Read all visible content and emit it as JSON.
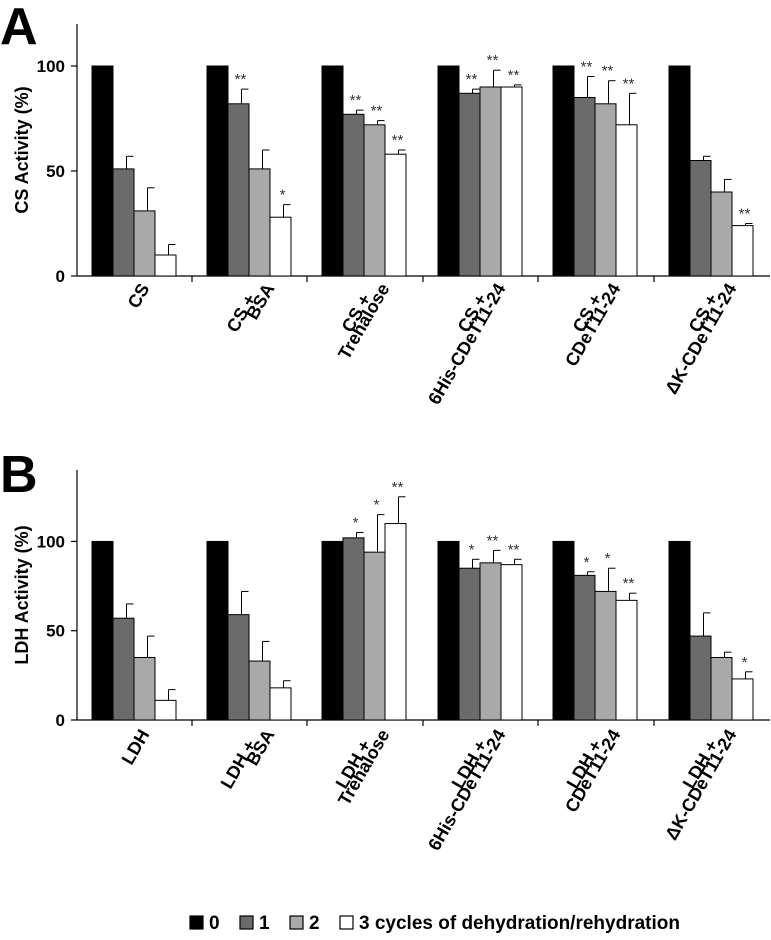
{
  "legend": {
    "entries": [
      {
        "label": "0",
        "color": "#000000"
      },
      {
        "label": "1",
        "color": "#6b6b6b"
      },
      {
        "label": "2",
        "color": "#a9a9a9"
      },
      {
        "label": "3 cycles of dehydration/rehydration",
        "color": "#ffffff"
      }
    ]
  },
  "chart_data": [
    {
      "type": "bar",
      "panel": "A",
      "title": "",
      "xlabel": "",
      "ylabel": "CS Activity (%)",
      "ylim": [
        0,
        120
      ],
      "yticks": [
        0,
        50,
        100
      ],
      "categories": [
        [
          "CS"
        ],
        [
          "CS +",
          "BSA"
        ],
        [
          "CS +",
          "Trehalose"
        ],
        [
          "CS +",
          "6His-CDeT11-24"
        ],
        [
          "CS +",
          "CDeT11-24"
        ],
        [
          "CS +",
          "ΔK-CDeT11-24"
        ]
      ],
      "series": [
        {
          "name": "0",
          "values": [
            100,
            100,
            100,
            100,
            100,
            100
          ],
          "errors": [
            0,
            0,
            0,
            0,
            0,
            0
          ],
          "sig": [
            "",
            "",
            "",
            "",
            "",
            ""
          ]
        },
        {
          "name": "1",
          "values": [
            51,
            82,
            77,
            87,
            85,
            55
          ],
          "errors": [
            6,
            7,
            2,
            2,
            10,
            2
          ],
          "sig": [
            "",
            "**",
            "**",
            "**",
            "**",
            ""
          ]
        },
        {
          "name": "2",
          "values": [
            31,
            51,
            72,
            90,
            82,
            40
          ],
          "errors": [
            11,
            9,
            2,
            8,
            11,
            6
          ],
          "sig": [
            "",
            "",
            "**",
            "**",
            "**",
            ""
          ]
        },
        {
          "name": "3",
          "values": [
            10,
            28,
            58,
            90,
            72,
            24
          ],
          "errors": [
            5,
            6,
            2,
            1,
            15,
            1
          ],
          "sig": [
            "",
            "*",
            "**",
            "**",
            "**",
            "**"
          ]
        }
      ]
    },
    {
      "type": "bar",
      "panel": "B",
      "title": "",
      "xlabel": "",
      "ylabel": "LDH Activity (%)",
      "ylim": [
        0,
        140
      ],
      "yticks": [
        0,
        50,
        100
      ],
      "categories": [
        [
          "LDH"
        ],
        [
          "LDH +",
          "BSA"
        ],
        [
          "LDH +",
          "Trehalose"
        ],
        [
          "LDH +",
          "6His-CDeT11-24"
        ],
        [
          "LDH +",
          "CDeT11-24"
        ],
        [
          "LDH +",
          "ΔK-CDeT11-24"
        ]
      ],
      "series": [
        {
          "name": "0",
          "values": [
            100,
            100,
            100,
            100,
            100,
            100
          ],
          "errors": [
            0,
            0,
            0,
            0,
            0,
            0
          ],
          "sig": [
            "",
            "",
            "",
            "",
            "",
            ""
          ]
        },
        {
          "name": "1",
          "values": [
            57,
            59,
            102,
            85,
            81,
            47
          ],
          "errors": [
            8,
            13,
            3,
            5,
            2,
            13
          ],
          "sig": [
            "",
            "",
            "*",
            "*",
            "*",
            ""
          ]
        },
        {
          "name": "2",
          "values": [
            35,
            33,
            94,
            88,
            72,
            35
          ],
          "errors": [
            12,
            11,
            21,
            7,
            13,
            3
          ],
          "sig": [
            "",
            "",
            "*",
            "**",
            "*",
            ""
          ]
        },
        {
          "name": "3",
          "values": [
            11,
            18,
            110,
            87,
            67,
            23
          ],
          "errors": [
            6,
            4,
            15,
            3,
            4,
            4
          ],
          "sig": [
            "",
            "",
            "**",
            "**",
            "**",
            "*"
          ]
        }
      ]
    }
  ]
}
